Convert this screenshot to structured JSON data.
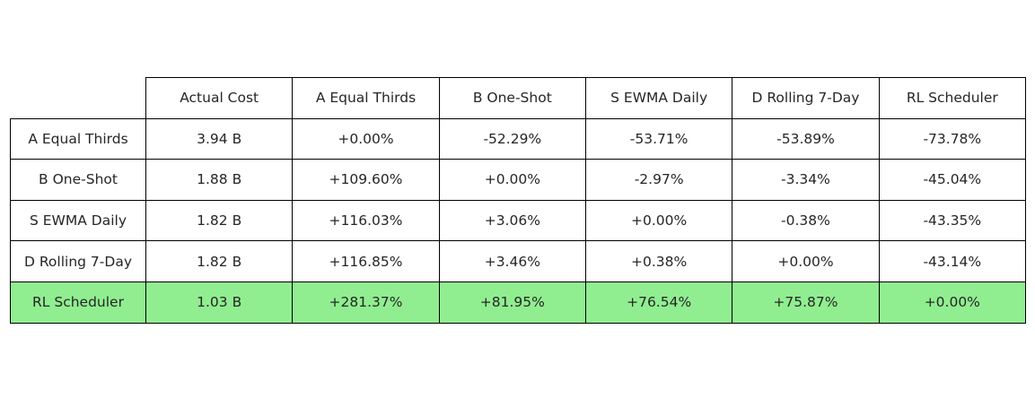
{
  "chart_data": {
    "type": "table",
    "columns": [
      "Actual Cost",
      "A Equal Thirds",
      "B One-Shot",
      "S EWMA Daily",
      "D Rolling 7-Day",
      "RL Scheduler"
    ],
    "rows": [
      {
        "label": "A Equal Thirds",
        "cells": [
          "3.94 B",
          "+0.00%",
          "-52.29%",
          "-53.71%",
          "-53.89%",
          "-73.78%"
        ]
      },
      {
        "label": "B One-Shot",
        "cells": [
          "1.88 B",
          "+109.60%",
          "+0.00%",
          "-2.97%",
          "-3.34%",
          "-45.04%"
        ]
      },
      {
        "label": "S EWMA Daily",
        "cells": [
          "1.82 B",
          "+116.03%",
          "+3.06%",
          "+0.00%",
          "-0.38%",
          "-43.35%"
        ]
      },
      {
        "label": "D Rolling 7-Day",
        "cells": [
          "1.82 B",
          "+116.85%",
          "+3.46%",
          "+0.38%",
          "+0.00%",
          "-43.14%"
        ]
      },
      {
        "label": "RL Scheduler",
        "cells": [
          "1.03 B",
          "+281.37%",
          "+81.95%",
          "+76.54%",
          "+75.87%",
          "+0.00%"
        ],
        "highlight": true
      }
    ],
    "colors": {
      "highlight_row": "#90ee90",
      "cell_background": "#ffffff",
      "border": "#000000",
      "text": "#262626"
    }
  }
}
